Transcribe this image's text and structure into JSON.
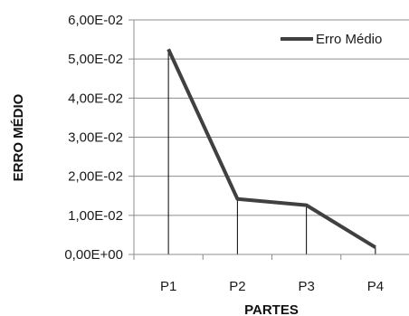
{
  "chart_data": {
    "type": "line",
    "title": "",
    "xlabel": "PARTES",
    "ylabel": "ERRO MÉDIO",
    "categories": [
      "P1",
      "P2",
      "P3",
      "P4"
    ],
    "series": [
      {
        "name": "Erro Médio",
        "values": [
          0.0525,
          0.0142,
          0.0126,
          0.0018
        ],
        "color": "#404040"
      }
    ],
    "ylim": [
      0,
      0.06
    ],
    "yticks": [
      0,
      0.01,
      0.02,
      0.03,
      0.04,
      0.05,
      0.06
    ],
    "ytick_labels": [
      "0,00E+00",
      "1,00E-02",
      "2,00E-02",
      "3,00E-02",
      "4,00E-02",
      "5,00E-02",
      "6,00E-02"
    ],
    "grid": true,
    "drop_lines": true,
    "legend": "top-right"
  }
}
